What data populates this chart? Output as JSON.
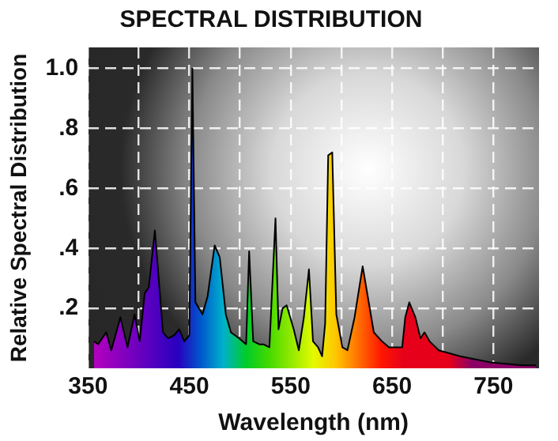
{
  "chart_data": {
    "type": "area",
    "title": "SPECTRAL DISTRIBUTION",
    "xlabel": "Wavelength (nm)",
    "ylabel": "Relative Spectral Distribution",
    "xlim": [
      350,
      795
    ],
    "xticks": [
      350,
      {
        "value": 400,
        "label": null
      },
      450,
      {
        "value": 500,
        "label": null
      },
      550,
      {
        "value": 600,
        "label": null
      },
      650,
      {
        "value": 700,
        "label": null
      },
      750
    ],
    "ylim": [
      0,
      1.07
    ],
    "yticks": [
      {
        "value": 0.2,
        "label": ".2"
      },
      {
        "value": 0.4,
        "label": ".4"
      },
      {
        "value": 0.6,
        "label": ".6"
      },
      {
        "value": 0.8,
        "label": ".8"
      },
      {
        "value": 1.0,
        "label": "1.0"
      }
    ],
    "grid": true,
    "line_style": "solid",
    "x": [
      356,
      360,
      368,
      373,
      382,
      389,
      396,
      401,
      406,
      410,
      416,
      420,
      424,
      429,
      435,
      440,
      445,
      450,
      453,
      456,
      463,
      468,
      475,
      480,
      486,
      491,
      499,
      506,
      509,
      513,
      519,
      523,
      529,
      535,
      538,
      542,
      546,
      553,
      558,
      563,
      568,
      572,
      577,
      581,
      584,
      587,
      591,
      595,
      601,
      606,
      613,
      621,
      627,
      632,
      640,
      647,
      660,
      663,
      667,
      673,
      678,
      682,
      687,
      696,
      717,
      747,
      778,
      792
    ],
    "series": [
      {
        "color": "#000000",
        "values": [
          0.09,
          0.08,
          0.12,
          0.06,
          0.17,
          0.07,
          0.18,
          0.09,
          0.25,
          0.27,
          0.46,
          0.29,
          0.12,
          0.1,
          0.11,
          0.13,
          0.09,
          0.11,
          1.0,
          0.22,
          0.18,
          0.24,
          0.41,
          0.37,
          0.18,
          0.12,
          0.1,
          0.08,
          0.39,
          0.09,
          0.08,
          0.08,
          0.07,
          0.5,
          0.13,
          0.2,
          0.21,
          0.13,
          0.06,
          0.17,
          0.33,
          0.09,
          0.07,
          0.04,
          0.15,
          0.71,
          0.72,
          0.18,
          0.07,
          0.06,
          0.17,
          0.34,
          0.22,
          0.12,
          0.09,
          0.07,
          0.07,
          0.17,
          0.22,
          0.17,
          0.1,
          0.12,
          0.09,
          0.06,
          0.04,
          0.02,
          0.01,
          0.01
        ]
      }
    ]
  }
}
